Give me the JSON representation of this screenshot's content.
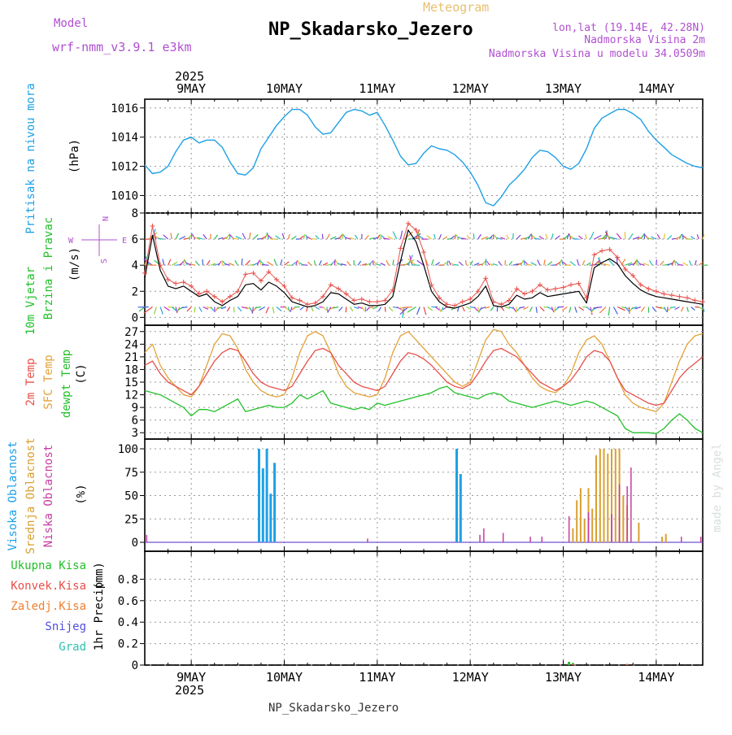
{
  "header": {
    "model_label": "Model",
    "model_value": "wrf-nmm_v3.9.1 e3km",
    "meteogram_label": "Meteogram",
    "station_title": "NP_Skadarsko_Jezero",
    "lonlat": "lon,lat (19.14E, 42.28N)",
    "altitude": "Nadmorska Visina 2m",
    "model_altitude": "Nadmorska Visina u modelu 34.0509m",
    "footer_station": "NP_Skadarsko_Jezero",
    "credit": "made by Angel"
  },
  "colors": {
    "pressure": "#1ea0e6",
    "temp2m": "#e8504a",
    "sfc": "#e3a238",
    "dew": "#22c02a",
    "high_cloud": "#1ea0e6",
    "mid_cloud": "#d9a030",
    "low_cloud": "#c83ca0",
    "wind_speed": "#000000",
    "gust": "#e8504a",
    "title": "#000000",
    "model_text": "#b050d0",
    "meteogram_text": "#e8c070"
  },
  "time_axis": {
    "year_top": "2025",
    "year_bottom": "2025",
    "day_labels": [
      "9MAY",
      "10MAY",
      "11MAY",
      "12MAY",
      "13MAY",
      "14MAY"
    ],
    "day_offsets_h": [
      12,
      36,
      60,
      84,
      108,
      132
    ]
  },
  "chart_data": [
    {
      "type": "line",
      "id": "pressure",
      "title": "Pritisak na nivou mora",
      "ylabel": "(hPa)",
      "ylim": [
        1008.8,
        1016.6
      ],
      "yticks": [
        1010,
        1012,
        1014,
        1016
      ],
      "x_hours": [
        0,
        2,
        4,
        6,
        8,
        10,
        12,
        14,
        16,
        18,
        20,
        22,
        24,
        26,
        28,
        30,
        32,
        34,
        36,
        38,
        40,
        42,
        44,
        46,
        48,
        50,
        52,
        54,
        56,
        58,
        60,
        62,
        64,
        66,
        68,
        70,
        72,
        74,
        76,
        78,
        80,
        82,
        84,
        86,
        88,
        90,
        92,
        94,
        96,
        98,
        100,
        102,
        104,
        106,
        108,
        110,
        112,
        114,
        116,
        118,
        120,
        122,
        124,
        126,
        128,
        130,
        132,
        134,
        136,
        138,
        140,
        142,
        144
      ],
      "series": [
        {
          "name": "pressure",
          "values": [
            1012.1,
            1011.5,
            1011.6,
            1012.0,
            1013.0,
            1013.8,
            1014.0,
            1013.6,
            1013.8,
            1013.8,
            1013.3,
            1012.3,
            1011.5,
            1011.4,
            1011.9,
            1013.2,
            1014.0,
            1014.8,
            1015.4,
            1015.9,
            1015.9,
            1015.5,
            1014.7,
            1014.2,
            1014.3,
            1015.0,
            1015.7,
            1015.9,
            1015.8,
            1015.5,
            1015.7,
            1014.8,
            1013.8,
            1012.7,
            1012.1,
            1012.2,
            1012.9,
            1013.4,
            1013.2,
            1013.1,
            1012.8,
            1012.3,
            1011.6,
            1010.7,
            1009.5,
            1009.3,
            1009.9,
            1010.7,
            1011.2,
            1011.8,
            1012.6,
            1013.1,
            1013.0,
            1012.6,
            1012.0,
            1011.8,
            1012.2,
            1013.2,
            1014.6,
            1015.3,
            1015.6,
            1015.9,
            1015.9,
            1015.6,
            1015.2,
            1014.4,
            1013.8,
            1013.3,
            1012.8,
            1012.5,
            1012.2,
            1012.0,
            1011.9
          ]
        }
      ]
    },
    {
      "type": "line",
      "id": "wind",
      "title": "10m Vjetar",
      "subtitle": "Brzina i Pravac",
      "ylabel": "(m/s)",
      "compass_w": "W",
      "compass_e": "E",
      "compass_n": "N",
      "compass_s": "S",
      "ylim": [
        -0.6,
        8.0
      ],
      "yticks": [
        0,
        2,
        4,
        6,
        8
      ],
      "x_hours": [
        0,
        2,
        4,
        6,
        8,
        10,
        12,
        14,
        16,
        18,
        20,
        22,
        24,
        26,
        28,
        30,
        32,
        34,
        36,
        38,
        40,
        42,
        44,
        46,
        48,
        50,
        52,
        54,
        56,
        58,
        60,
        62,
        64,
        66,
        68,
        70,
        72,
        74,
        76,
        78,
        80,
        82,
        84,
        86,
        88,
        90,
        92,
        94,
        96,
        98,
        100,
        102,
        104,
        106,
        108,
        110,
        112,
        114,
        116,
        118,
        120,
        122,
        124,
        126,
        128,
        130,
        132,
        134,
        136,
        138,
        140,
        142,
        144
      ],
      "series": [
        {
          "name": "wind_speed",
          "values": [
            3.0,
            6.3,
            3.6,
            2.4,
            2.2,
            2.4,
            2.0,
            1.6,
            1.8,
            1.2,
            0.9,
            1.3,
            1.6,
            2.5,
            2.6,
            2.1,
            2.7,
            2.4,
            1.9,
            1.2,
            1.0,
            0.8,
            0.9,
            1.2,
            1.9,
            1.8,
            1.4,
            1.0,
            1.1,
            0.9,
            0.9,
            1.0,
            1.6,
            4.3,
            6.7,
            5.8,
            4.0,
            2.0,
            1.2,
            0.8,
            0.7,
            0.9,
            1.1,
            1.6,
            2.4,
            0.9,
            0.8,
            1.0,
            1.7,
            1.4,
            1.5,
            1.9,
            1.6,
            1.7,
            1.8,
            1.9,
            2.0,
            1.1,
            3.8,
            4.2,
            4.5,
            4.1,
            3.2,
            2.6,
            2.1,
            1.8,
            1.6,
            1.5,
            1.4,
            1.3,
            1.2,
            1.1,
            1.0
          ]
        },
        {
          "name": "gust",
          "values": [
            3.4,
            7.0,
            4.0,
            2.9,
            2.6,
            2.7,
            2.4,
            1.8,
            2.0,
            1.6,
            1.2,
            1.6,
            2.0,
            3.3,
            3.4,
            2.8,
            3.5,
            2.9,
            2.4,
            1.5,
            1.3,
            1.0,
            1.1,
            1.6,
            2.5,
            2.2,
            1.8,
            1.3,
            1.4,
            1.2,
            1.2,
            1.3,
            2.1,
            5.3,
            7.2,
            6.7,
            5.0,
            2.5,
            1.5,
            1.0,
            0.9,
            1.2,
            1.4,
            2.0,
            3.0,
            1.2,
            1.0,
            1.3,
            2.2,
            1.8,
            2.0,
            2.5,
            2.1,
            2.2,
            2.3,
            2.5,
            2.6,
            1.5,
            4.8,
            5.1,
            5.2,
            4.6,
            3.7,
            3.2,
            2.5,
            2.2,
            2.0,
            1.8,
            1.7,
            1.6,
            1.5,
            1.3,
            1.2
          ]
        }
      ],
      "barb_levels": [
        {
          "level": 6,
          "name": "upper"
        },
        {
          "level": 4,
          "name": "middle"
        },
        {
          "level": 0.8,
          "name": "lower"
        }
      ]
    },
    {
      "type": "line",
      "id": "temperature",
      "title": "2m Temp",
      "title2": "SFC Temp",
      "title3": "dewpt Temp",
      "ylabel": "(C)",
      "ylim": [
        1.5,
        28.5
      ],
      "yticks": [
        3,
        6,
        9,
        12,
        15,
        18,
        21,
        24,
        27
      ],
      "x_hours": [
        0,
        2,
        4,
        6,
        8,
        10,
        12,
        14,
        16,
        18,
        20,
        22,
        24,
        26,
        28,
        30,
        32,
        34,
        36,
        38,
        40,
        42,
        44,
        46,
        48,
        50,
        52,
        54,
        56,
        58,
        60,
        62,
        64,
        66,
        68,
        70,
        72,
        74,
        76,
        78,
        80,
        82,
        84,
        86,
        88,
        90,
        92,
        94,
        96,
        98,
        100,
        102,
        104,
        106,
        108,
        110,
        112,
        114,
        116,
        118,
        120,
        122,
        124,
        126,
        128,
        130,
        132,
        134,
        136,
        138,
        140,
        142,
        144
      ],
      "series": [
        {
          "name": "temp2m",
          "values": [
            19,
            20,
            17,
            15,
            14,
            13,
            12,
            14,
            17,
            20,
            22,
            23,
            22.5,
            20,
            17,
            15,
            14,
            13.5,
            13,
            14,
            17,
            20,
            22.5,
            23,
            22,
            19,
            17,
            15,
            14,
            13.5,
            13,
            14,
            17,
            20,
            22,
            21.5,
            20.5,
            19,
            17,
            15,
            14,
            13.5,
            14.5,
            17,
            20,
            22.5,
            23,
            22,
            21,
            19,
            17,
            15,
            14,
            13,
            14,
            15.5,
            18,
            21,
            22.5,
            22,
            20,
            16,
            13,
            12,
            11,
            10,
            9.5,
            10,
            13,
            16,
            18,
            19.5,
            21
          ]
        },
        {
          "name": "sfc_temp",
          "values": [
            22,
            24,
            19,
            16,
            14,
            12,
            11.5,
            14,
            19,
            24,
            26.5,
            26,
            23,
            18,
            15,
            13,
            12,
            11.5,
            12,
            16,
            22,
            26,
            27,
            26,
            22,
            17,
            14,
            12.5,
            12,
            11.5,
            12,
            16,
            22,
            26,
            27,
            25,
            23,
            21,
            19,
            17,
            15,
            14,
            15,
            20,
            25,
            27.5,
            27,
            24,
            22,
            19,
            16,
            14,
            13,
            12.5,
            14,
            17,
            22,
            25,
            26,
            24,
            20,
            16,
            12,
            10,
            9,
            8.5,
            8,
            10,
            15,
            20,
            24,
            26,
            26.5
          ]
        },
        {
          "name": "dewpt",
          "values": [
            13,
            12.5,
            12,
            11,
            10,
            9,
            7,
            8.5,
            8.5,
            8,
            9,
            10,
            11,
            8,
            8.5,
            9,
            9.5,
            9,
            9,
            10,
            12,
            11,
            12,
            13,
            10,
            9.5,
            9,
            8.5,
            9,
            8.5,
            10,
            9.5,
            10,
            10.5,
            11,
            11.5,
            12,
            12.5,
            13.5,
            14,
            12.5,
            12,
            11.5,
            11,
            12,
            12.5,
            12,
            10.5,
            10,
            9.5,
            9,
            9.5,
            10,
            10.5,
            10,
            9.5,
            10,
            10.5,
            10,
            9,
            8,
            7,
            4,
            3,
            3,
            3,
            2.8,
            4,
            6,
            7.5,
            6,
            4,
            3
          ]
        }
      ]
    },
    {
      "type": "bar",
      "id": "clouds",
      "title": "Visoka Oblacnost",
      "title2": "Srednja Oblacnost",
      "title3": "Niska Oblacnost",
      "ylabel": "(%)",
      "ylim": [
        0,
        100
      ],
      "yticks": [
        0,
        25,
        50,
        75,
        100
      ],
      "series": [
        {
          "name": "high",
          "points": [
            [
              29,
              100
            ],
            [
              30,
              79
            ],
            [
              31,
              100
            ],
            [
              32,
              52
            ],
            [
              33,
              85
            ],
            [
              80,
              100
            ],
            [
              81,
              73
            ]
          ]
        },
        {
          "name": "mid",
          "points": [
            [
              110,
              15
            ],
            [
              111,
              45
            ],
            [
              112,
              58
            ],
            [
              113,
              25
            ],
            [
              114,
              58
            ],
            [
              115,
              36
            ],
            [
              116,
              93
            ],
            [
              117,
              100
            ],
            [
              118,
              100
            ],
            [
              119,
              95
            ],
            [
              120,
              100
            ],
            [
              121,
              100
            ],
            [
              122,
              100
            ],
            [
              123,
              50
            ],
            [
              124,
              40
            ],
            [
              127,
              21
            ],
            [
              133,
              6
            ],
            [
              134,
              9
            ]
          ]
        },
        {
          "name": "low",
          "points": [
            [
              0,
              8
            ],
            [
              57,
              4
            ],
            [
              86,
              8
            ],
            [
              87,
              15
            ],
            [
              92,
              10
            ],
            [
              99,
              6
            ],
            [
              102,
              6
            ],
            [
              109,
              28
            ],
            [
              114,
              32
            ],
            [
              120,
              30
            ],
            [
              122,
              62
            ],
            [
              124,
              60
            ],
            [
              125,
              80
            ],
            [
              138,
              6
            ],
            [
              143,
              6
            ]
          ]
        }
      ]
    },
    {
      "type": "bar",
      "id": "precip",
      "title": "1hr Precip",
      "ylabel": "(mm)",
      "ylim": [
        0,
        1.0
      ],
      "yticks": [
        0,
        0.2,
        0.4,
        0.6,
        0.8
      ],
      "legend": [
        "Ukupna Kisa",
        "Konvek.Kisa",
        "Zaledj.Kisa",
        "Snijeg",
        "Grad"
      ],
      "legend_colors": [
        "#22c02a",
        "#e8504a",
        "#f08030",
        "#5050e0",
        "#30c0b0"
      ],
      "series": [
        {
          "name": "total",
          "points": [
            [
              109,
              0.03
            ],
            [
              110,
              0.02
            ],
            [
              124,
              0.01
            ]
          ]
        },
        {
          "name": "convective",
          "points": [
            [
              110,
              0.01
            ],
            [
              124,
              0.01
            ]
          ]
        }
      ]
    }
  ]
}
